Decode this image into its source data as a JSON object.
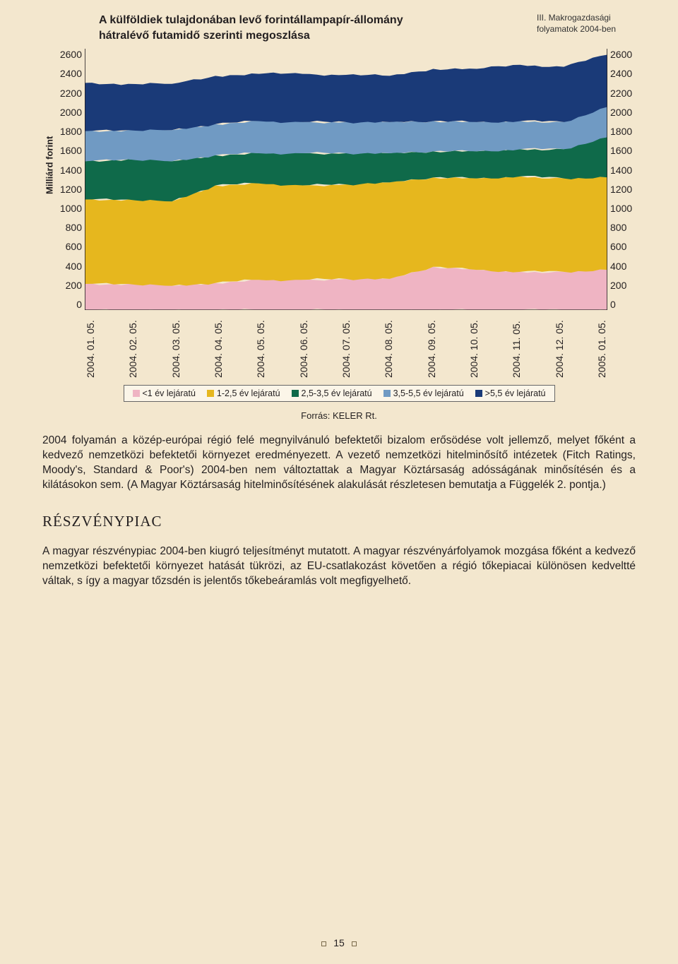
{
  "corner_note": {
    "line1": "III. Makrogazdasági",
    "line2": "folyamatok 2004-ben"
  },
  "chart": {
    "type": "stacked-area",
    "title_line1": "A külföldiek tulajdonában levő forintállampapír-állomány",
    "title_line2": "hátralévő futamidő szerinti megoszlása",
    "yaxis_label": "Milliárd forint",
    "ylim": [
      0,
      2600
    ],
    "ytick_step": 200,
    "yticks": [
      "2600",
      "2400",
      "2200",
      "2000",
      "1800",
      "1600",
      "1400",
      "1200",
      "1000",
      "800",
      "600",
      "400",
      "200",
      "0"
    ],
    "xticks": [
      "2004. 01. 05.",
      "2004. 02. 05.",
      "2004. 03. 05.",
      "2004. 04. 05.",
      "2004. 05. 05.",
      "2004. 06. 05.",
      "2004. 07. 05.",
      "2004. 08. 05.",
      "2004. 09. 05.",
      "2004. 10. 05.",
      "2004. 11. 05.",
      "2004. 12. 05.",
      "2005. 01. 05."
    ],
    "background_color": "#f3e7ce",
    "axis_color": "#231f20",
    "series": [
      {
        "name": "<1 év lejáratú",
        "color": "#efb4c3",
        "values_top": [
          260,
          260,
          240,
          270,
          300,
          300,
          310,
          310,
          430,
          400,
          380,
          380,
          400
        ]
      },
      {
        "name": "1-2,5 év lejáratú",
        "color": "#e6b71e",
        "values_top": [
          1100,
          1100,
          1080,
          1240,
          1260,
          1240,
          1250,
          1270,
          1320,
          1310,
          1330,
          1310,
          1320
        ]
      },
      {
        "name": "2,5-3,5 év lejáratú",
        "color": "#0f6a4a",
        "values_top": [
          1480,
          1500,
          1480,
          1540,
          1560,
          1560,
          1560,
          1560,
          1580,
          1580,
          1600,
          1600,
          1720
        ]
      },
      {
        "name": "3,5-5,5 év lejáratú",
        "color": "#709ac3",
        "values_top": [
          1780,
          1790,
          1790,
          1850,
          1880,
          1870,
          1870,
          1870,
          1880,
          1870,
          1880,
          1870,
          2020
        ]
      },
      {
        "name": ">5,5 év lejáratú",
        "color": "#1a3a78",
        "values_top": [
          2260,
          2250,
          2250,
          2330,
          2350,
          2350,
          2340,
          2330,
          2400,
          2400,
          2440,
          2420,
          2540
        ]
      }
    ],
    "label_fontsize": 14,
    "title_fontsize": 16
  },
  "source": "Forrás: KELER Rt.",
  "paragraph1": "2004 folyamán a közép-európai régió felé megnyilvánuló befektetői bizalom erősödése volt jellemző, melyet főként a kedvező nemzetközi befektetői környezet eredményezett. A vezető nemzetközi hitelminősítő intézetek (Fitch Ratings, Moody's, Standard & Poor's) 2004-ben nem változtattak a Magyar Köztársaság adósságának minősítésén és a kilátásokon sem. (A Magyar Köztársaság hitelminősítésének alakulását részletesen bemutatja a Függelék 2. pontja.)",
  "section_heading": "RÉSZVÉNYPIAC",
  "paragraph2": "A magyar részvénypiac 2004-ben kiugró teljesítményt mutatott. A magyar részvényárfolyamok mozgása főként a kedvező nemzetközi befektetői környezet hatását tükrözi, az EU-csatlakozást követően a régió tőkepiacai különösen kedveltté váltak, s így a magyar tőzsdén is jelentős tőkebeáramlás volt megfigyelhető.",
  "page_number": "15"
}
